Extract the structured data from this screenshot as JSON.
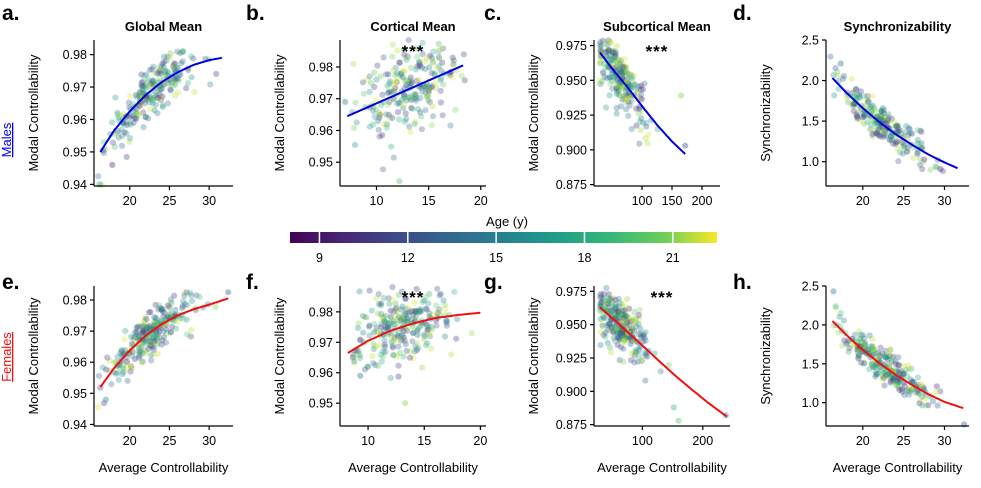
{
  "figure": {
    "group_labels": [
      {
        "key": "males",
        "text": "Males",
        "color": "#0000ee"
      },
      {
        "key": "females",
        "text": "Females",
        "color": "#ee1111"
      }
    ],
    "colorbar": {
      "title": "Age (y)",
      "ticks": [
        9,
        12,
        15,
        18,
        21
      ],
      "range": [
        8,
        22.5
      ],
      "colormap": "viridis"
    }
  },
  "chart_data": [
    {
      "id": "a",
      "letter": "a.",
      "type": "scatter",
      "title": "Global Mean",
      "group": "males",
      "xlabel": "",
      "ylabel": "Modal Controllability",
      "xlim": [
        15.5,
        33
      ],
      "ylim": [
        0.9395,
        0.9845
      ],
      "xticks": [
        20,
        25,
        30
      ],
      "yticks": [
        0.94,
        0.95,
        0.96,
        0.97,
        0.98
      ],
      "xtick_labels": [
        "20",
        "25",
        "30"
      ],
      "ytick_labels": [
        "0.94",
        "0.95",
        "0.96",
        "0.97",
        "0.98"
      ],
      "fit": {
        "x": [
          16.3,
          18,
          20,
          22,
          24,
          26,
          28,
          30,
          31.6
        ],
        "y": [
          0.95,
          0.9565,
          0.9625,
          0.9675,
          0.9715,
          0.9745,
          0.9768,
          0.9783,
          0.979
        ],
        "color": "#0000dd"
      },
      "significance": "",
      "cloud": {
        "n": 230,
        "x_mean": 22.5,
        "x_sd": 2.8,
        "x_min": 16,
        "x_max": 32,
        "y_sd": 0.0038,
        "outliers": [
          [
            16.2,
            0.94
          ],
          [
            17.8,
            0.946
          ]
        ]
      }
    },
    {
      "id": "b",
      "letter": "b.",
      "type": "scatter",
      "title": "Cortical Mean",
      "group": "males",
      "xlabel": "",
      "ylabel": "Modal Controllability",
      "xlim": [
        6.5,
        20.5
      ],
      "ylim": [
        0.9425,
        0.9885
      ],
      "xticks": [
        10,
        15,
        20
      ],
      "yticks": [
        0.95,
        0.96,
        0.97,
        0.98
      ],
      "xtick_labels": [
        "10",
        "15",
        "20"
      ],
      "ytick_labels": [
        "0.95",
        "0.96",
        "0.97",
        "0.98"
      ],
      "fit": {
        "x": [
          7.2,
          18.3
        ],
        "y": [
          0.9645,
          0.9805
        ],
        "color": "#0000dd"
      },
      "significance": "***",
      "cloud": {
        "n": 230,
        "x_mean": 13,
        "x_sd": 2.3,
        "x_min": 7.5,
        "x_max": 18.5,
        "y_sd": 0.0065,
        "outliers": [
          [
            12.2,
            0.944
          ],
          [
            7.0,
            0.969
          ]
        ]
      }
    },
    {
      "id": "c",
      "letter": "c.",
      "type": "scatter",
      "title": "Subcortical Mean",
      "group": "males",
      "xlabel": "",
      "ylabel": "Modal Controllability",
      "xlim": [
        20,
        230
      ],
      "ylim": [
        0.874,
        0.979
      ],
      "xticks": [
        100,
        150,
        200
      ],
      "yticks": [
        0.875,
        0.9,
        0.925,
        0.95,
        0.975
      ],
      "xtick_labels": [
        "100",
        "150",
        "200"
      ],
      "ytick_labels": [
        "0.875",
        "0.900",
        "0.925",
        "0.950",
        "0.975"
      ],
      "fit": {
        "x": [
          30,
          50,
          75,
          100,
          125,
          150,
          172
        ],
        "y": [
          0.97,
          0.9585,
          0.9455,
          0.9315,
          0.918,
          0.906,
          0.897
        ],
        "color": "#0000dd"
      },
      "significance": "***",
      "cloud": {
        "n": 230,
        "x_mean": 65,
        "x_sd": 22,
        "x_min": 30,
        "x_max": 172,
        "y_sd": 0.01,
        "outliers": [
          [
            165,
            0.939
          ],
          [
            172,
            0.903
          ]
        ]
      }
    },
    {
      "id": "d",
      "letter": "d.",
      "type": "scatter",
      "title": "Synchronizability",
      "group": "males",
      "xlabel": "",
      "ylabel": "Synchronizability",
      "xlim": [
        15.5,
        33
      ],
      "ylim": [
        0.7,
        2.5
      ],
      "xticks": [
        20,
        25,
        30
      ],
      "yticks": [
        1.0,
        1.5,
        2.0,
        2.5
      ],
      "xtick_labels": [
        "20",
        "25",
        "30"
      ],
      "ytick_labels": [
        "1.0",
        "1.5",
        "2.0",
        "2.5"
      ],
      "fit": {
        "x": [
          16.3,
          18,
          20,
          22,
          24,
          26,
          28,
          30,
          31.6
        ],
        "y": [
          2.03,
          1.85,
          1.66,
          1.49,
          1.34,
          1.21,
          1.09,
          0.99,
          0.92
        ],
        "color": "#0000dd"
      },
      "significance": "",
      "cloud": {
        "n": 230,
        "x_mean": 22.5,
        "x_sd": 2.8,
        "x_min": 16,
        "x_max": 32,
        "y_sd": 0.11,
        "outliers": [
          [
            17.3,
            2.21
          ],
          [
            29.5,
            0.91
          ]
        ]
      }
    },
    {
      "id": "e",
      "letter": "e.",
      "type": "scatter",
      "title": "",
      "group": "females",
      "xlabel": "Average Controllability",
      "ylabel": "Modal Controllability",
      "xlim": [
        15.5,
        33
      ],
      "ylim": [
        0.9395,
        0.9845
      ],
      "xticks": [
        20,
        25,
        30
      ],
      "yticks": [
        0.94,
        0.95,
        0.96,
        0.97,
        0.98
      ],
      "xtick_labels": [
        "20",
        "25",
        "30"
      ],
      "ytick_labels": [
        "0.94",
        "0.95",
        "0.96",
        "0.97",
        "0.98"
      ],
      "fit": {
        "x": [
          16.3,
          18,
          20,
          22,
          24,
          26,
          28,
          30,
          32.4
        ],
        "y": [
          0.952,
          0.958,
          0.9638,
          0.9685,
          0.9722,
          0.975,
          0.977,
          0.9785,
          0.9805
        ],
        "color": "#ee1111"
      },
      "significance": "",
      "cloud": {
        "n": 260,
        "x_mean": 22.5,
        "x_sd": 2.8,
        "x_min": 16,
        "x_max": 32.5,
        "y_sd": 0.0035,
        "outliers": [
          [
            17.0,
            0.948
          ],
          [
            32.4,
            0.9825
          ]
        ]
      }
    },
    {
      "id": "f",
      "letter": "f.",
      "type": "scatter",
      "title": "",
      "group": "females",
      "xlabel": "Average Controllability",
      "ylabel": "Modal Controllability",
      "xlim": [
        7.5,
        20.5
      ],
      "ylim": [
        0.9425,
        0.9885
      ],
      "xticks": [
        10,
        15,
        20
      ],
      "yticks": [
        0.95,
        0.96,
        0.97,
        0.98
      ],
      "xtick_labels": [
        "10",
        "15",
        "20"
      ],
      "ytick_labels": [
        "0.95",
        "0.96",
        "0.97",
        "0.98"
      ],
      "fit": {
        "x": [
          8.2,
          10,
          12,
          14,
          16,
          18,
          20
        ],
        "y": [
          0.9665,
          0.9705,
          0.9738,
          0.9762,
          0.978,
          0.979,
          0.9797
        ],
        "color": "#ee1111"
      },
      "significance": "***",
      "cloud": {
        "n": 260,
        "x_mean": 13,
        "x_sd": 2.3,
        "x_min": 8.5,
        "x_max": 19.8,
        "y_sd": 0.0065,
        "outliers": [
          [
            13.3,
            0.95
          ],
          [
            9.3,
            0.959
          ]
        ]
      }
    },
    {
      "id": "g",
      "letter": "g.",
      "type": "scatter",
      "title": "",
      "group": "females",
      "xlabel": "Average Controllability",
      "ylabel": "Modal Controllability",
      "xlim": [
        20,
        245
      ],
      "ylim": [
        0.874,
        0.979
      ],
      "xticks": [
        100,
        200
      ],
      "yticks": [
        0.875,
        0.9,
        0.925,
        0.95,
        0.975
      ],
      "xtick_labels": [
        "100",
        "200"
      ],
      "ytick_labels": [
        "0.875",
        "0.900",
        "0.925",
        "0.950",
        "0.975"
      ],
      "fit": {
        "x": [
          30,
          60,
          90,
          120,
          150,
          180,
          210,
          240
        ],
        "y": [
          0.963,
          0.951,
          0.9385,
          0.926,
          0.9135,
          0.902,
          0.891,
          0.881
        ],
        "color": "#ee1111"
      },
      "significance": "***",
      "cloud": {
        "n": 260,
        "x_mean": 65,
        "x_sd": 22,
        "x_min": 30,
        "x_max": 240,
        "y_sd": 0.01,
        "outliers": [
          [
            160,
            0.878
          ],
          [
            238,
            0.882
          ],
          [
            152,
            0.888
          ]
        ]
      }
    },
    {
      "id": "h",
      "letter": "h.",
      "type": "scatter",
      "title": "",
      "group": "females",
      "xlabel": "Average Controllability",
      "ylabel": "Synchronizability",
      "xlim": [
        15.5,
        33
      ],
      "ylim": [
        0.7,
        2.5
      ],
      "xticks": [
        20,
        25,
        30
      ],
      "yticks": [
        1.0,
        1.5,
        2.0,
        2.5
      ],
      "xtick_labels": [
        "20",
        "25",
        "30"
      ],
      "ytick_labels": [
        "1.0",
        "1.5",
        "2.0",
        "2.5"
      ],
      "fit": {
        "x": [
          16.3,
          18,
          20,
          22,
          24,
          26,
          28,
          30,
          32.3
        ],
        "y": [
          2.05,
          1.87,
          1.68,
          1.51,
          1.36,
          1.23,
          1.11,
          1.01,
          0.93
        ],
        "color": "#ee1111"
      },
      "significance": "",
      "cloud": {
        "n": 260,
        "x_mean": 22.5,
        "x_sd": 2.8,
        "x_min": 16,
        "x_max": 32.5,
        "y_sd": 0.11,
        "outliers": [
          [
            16.4,
            2.43
          ],
          [
            32.4,
            0.72
          ]
        ]
      }
    }
  ]
}
